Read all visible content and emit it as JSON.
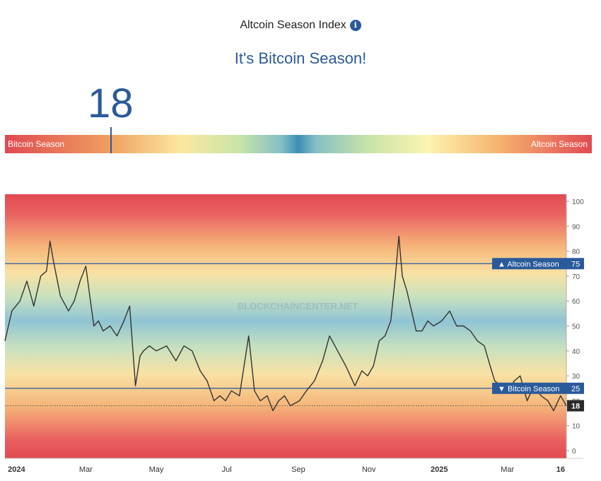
{
  "header": {
    "title": "Altcoin Season Index",
    "subtitle": "It's Bitcoin Season!",
    "index_value": "18"
  },
  "gauge": {
    "left_label": "Bitcoin Season",
    "right_label": "Altcoin Season",
    "current_value": 18
  },
  "watermark": "BLOCKCHAINCENTER.NET",
  "colors": {
    "accent": "#2a5a9b",
    "line": "#333333",
    "red_band": "#e04a52",
    "blue_band": "#8fc4d4"
  },
  "chart_data": {
    "type": "line",
    "ylim": [
      0,
      100
    ],
    "y_ticks": [
      "0",
      "10",
      "20",
      "30",
      "40",
      "50",
      "60",
      "70",
      "80",
      "90",
      "100"
    ],
    "x_tick_labels": [
      "2024",
      "Mar",
      "May",
      "Jul",
      "Sep",
      "Nov",
      "2025",
      "Mar",
      "16"
    ],
    "x_tick_dates": [
      "2024-01-01",
      "2024-03-01",
      "2024-05-01",
      "2024-07-01",
      "2024-09-01",
      "2024-11-01",
      "2025-01-01",
      "2025-03-01",
      "2025-04-16"
    ],
    "x_range": [
      "2023-12-22",
      "2025-04-21"
    ],
    "reference_lines": [
      {
        "label": "▲ Altcoin Season",
        "value": "75"
      },
      {
        "label": "▼ Bitcoin Season",
        "value": "25"
      }
    ],
    "current_label": "18",
    "series": [
      {
        "dates": [
          "2023-12-22",
          "2023-12-28",
          "2024-01-04",
          "2024-01-10",
          "2024-01-16",
          "2024-01-22",
          "2024-01-27",
          "2024-01-30",
          "2024-02-02",
          "2024-02-08",
          "2024-02-15",
          "2024-02-20",
          "2024-02-25",
          "2024-03-01",
          "2024-03-05",
          "2024-03-08",
          "2024-03-12",
          "2024-03-16",
          "2024-03-22",
          "2024-03-28",
          "2024-04-03",
          "2024-04-08",
          "2024-04-13",
          "2024-04-17",
          "2024-04-20",
          "2024-04-25",
          "2024-05-01",
          "2024-05-10",
          "2024-05-18",
          "2024-05-25",
          "2024-06-01",
          "2024-06-08",
          "2024-06-14",
          "2024-06-20",
          "2024-06-25",
          "2024-06-30",
          "2024-07-05",
          "2024-07-12",
          "2024-07-20",
          "2024-07-25",
          "2024-07-30",
          "2024-08-05",
          "2024-08-10",
          "2024-08-15",
          "2024-08-20",
          "2024-08-25",
          "2024-09-02",
          "2024-09-08",
          "2024-09-15",
          "2024-09-22",
          "2024-09-28",
          "2024-10-05",
          "2024-10-12",
          "2024-10-20",
          "2024-10-26",
          "2024-10-31",
          "2024-11-05",
          "2024-11-10",
          "2024-11-15",
          "2024-11-20",
          "2024-11-24",
          "2024-11-27",
          "2024-11-30",
          "2024-12-04",
          "2024-12-08",
          "2024-12-12",
          "2024-12-17",
          "2024-12-22",
          "2024-12-27",
          "2025-01-03",
          "2025-01-10",
          "2025-01-16",
          "2025-01-22",
          "2025-01-28",
          "2025-02-03",
          "2025-02-09",
          "2025-02-14",
          "2025-02-18",
          "2025-02-23",
          "2025-03-01",
          "2025-03-07",
          "2025-03-12",
          "2025-03-18",
          "2025-03-24",
          "2025-03-30",
          "2025-04-05",
          "2025-04-10",
          "2025-04-16",
          "2025-04-21"
        ],
        "values": [
          44,
          56,
          60,
          68,
          58,
          70,
          72,
          84,
          76,
          62,
          56,
          60,
          68,
          74,
          60,
          50,
          52,
          48,
          50,
          46,
          52,
          58,
          26,
          38,
          40,
          42,
          40,
          42,
          36,
          42,
          40,
          32,
          28,
          20,
          22,
          20,
          24,
          22,
          46,
          24,
          20,
          22,
          16,
          20,
          22,
          18,
          20,
          24,
          28,
          36,
          46,
          40,
          34,
          26,
          32,
          30,
          34,
          44,
          46,
          52,
          70,
          86,
          70,
          64,
          56,
          48,
          48,
          52,
          50,
          52,
          56,
          50,
          50,
          48,
          44,
          42,
          34,
          28,
          26,
          24,
          28,
          30,
          20,
          26,
          22,
          20,
          16,
          22,
          18
        ]
      }
    ]
  }
}
